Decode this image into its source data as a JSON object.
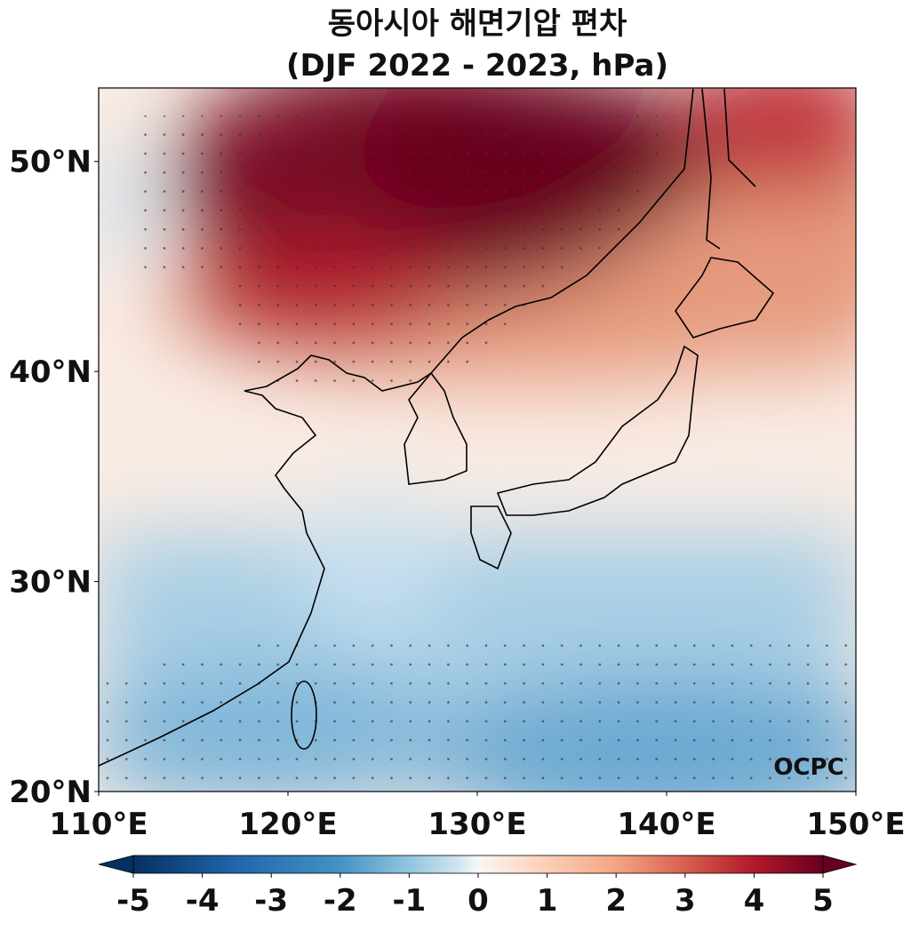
{
  "title": "동아시아 해면기압 편차",
  "subtitle": "(DJF 2022 - 2023, hPa)",
  "map": {
    "xlim": [
      110,
      150
    ],
    "ylim": [
      20,
      53.5
    ],
    "xticks": [
      {
        "value": 110,
        "label": "110°E"
      },
      {
        "value": 120,
        "label": "120°E"
      },
      {
        "value": 130,
        "label": "130°E"
      },
      {
        "value": 140,
        "label": "140°E"
      },
      {
        "value": 150,
        "label": "150°E"
      }
    ],
    "yticks": [
      {
        "value": 20,
        "label": "20°N"
      },
      {
        "value": 30,
        "label": "30°N"
      },
      {
        "value": 40,
        "label": "40°N"
      },
      {
        "value": 50,
        "label": "50°N"
      }
    ]
  },
  "colorbar": {
    "lim": [
      -5,
      5
    ],
    "ticks": [
      -5,
      -4,
      -3,
      -2,
      -1,
      0,
      1,
      2,
      3,
      4,
      5
    ]
  },
  "watermark": "OCPC"
}
